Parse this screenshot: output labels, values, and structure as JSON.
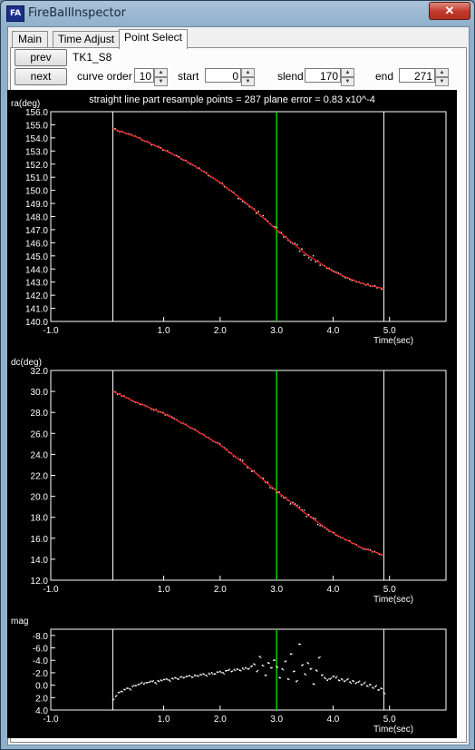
{
  "window": {
    "title": "FireBallInspector",
    "icon_text": "FA",
    "close_label": "✕"
  },
  "tabs": [
    {
      "label": "Main",
      "active": false
    },
    {
      "label": "Time Adjust",
      "active": false
    },
    {
      "label": "Point Select",
      "active": true
    }
  ],
  "controls": {
    "prev_label": "prev",
    "next_label": "next",
    "station_name": "TK1_S8",
    "curve_order_label": "curve order",
    "curve_order_value": "10",
    "start_label": "start",
    "start_value": "0",
    "slend_label": "slend",
    "slend_value": "170",
    "end_label": "end",
    "end_value": "271"
  },
  "status_line": "straight line part resample points = 287  plane error = 0.83 x10^-4",
  "colors": {
    "fit_line": "#ff2020",
    "points": "#ffffff",
    "marker": "#00d000",
    "axes": "#ffffff"
  },
  "chart_data": [
    {
      "type": "scatter",
      "title": "",
      "ylabel": "ra(deg)",
      "xlabel": "Time(sec)",
      "xlim": [
        -1.0,
        6.0
      ],
      "ylim": [
        140.0,
        156.0
      ],
      "x_ticks": [
        "-1.0",
        "1.0",
        "2.0",
        "3.0",
        "4.0",
        "5.0"
      ],
      "x_tick_values": [
        -1,
        1,
        2,
        3,
        4,
        5
      ],
      "y_ticks": [
        "155.0",
        "154.0",
        "153.0",
        "152.0",
        "151.0",
        "150.0",
        "149.0",
        "148.0",
        "147.0",
        "146.0",
        "145.0",
        "144.0",
        "143.0",
        "142.0",
        "141.0",
        "140.0"
      ],
      "y_tick_values": [
        155,
        154,
        153,
        152,
        151,
        150,
        149,
        148,
        147,
        146,
        145,
        144,
        143,
        142,
        141,
        140
      ],
      "y_top_label": "156.0",
      "start_line_x": 0.1,
      "end_line_x": 4.9,
      "marker_x": 3.0,
      "fit_curve": {
        "x": [
          0.1,
          0.5,
          1.0,
          1.5,
          2.0,
          2.5,
          3.0,
          3.5,
          4.0,
          4.5,
          4.9
        ],
        "y": [
          154.7,
          154.1,
          153.1,
          152.0,
          150.6,
          148.9,
          147.0,
          145.2,
          143.8,
          142.9,
          142.5
        ]
      },
      "scatter_noise": 0.15
    },
    {
      "type": "scatter",
      "title": "",
      "ylabel": "dc(deg)",
      "xlabel": "Time(sec)",
      "xlim": [
        -1.0,
        6.0
      ],
      "ylim": [
        12.0,
        32.0
      ],
      "x_ticks": [
        "-1.0",
        "1.0",
        "2.0",
        "3.0",
        "4.0",
        "5.0"
      ],
      "x_tick_values": [
        -1,
        1,
        2,
        3,
        4,
        5
      ],
      "y_ticks": [
        "32.0",
        "30.0",
        "28.0",
        "26.0",
        "24.0",
        "22.0",
        "20.0",
        "18.0",
        "16.0",
        "14.0",
        "12.0"
      ],
      "y_tick_values": [
        32,
        30,
        28,
        26,
        24,
        22,
        20,
        18,
        16,
        14,
        12
      ],
      "start_line_x": 0.1,
      "end_line_x": 4.9,
      "marker_x": 3.0,
      "fit_curve": {
        "x": [
          0.1,
          0.5,
          1.0,
          1.5,
          2.0,
          2.5,
          3.0,
          3.5,
          4.0,
          4.5,
          4.9
        ],
        "y": [
          30.0,
          29.0,
          27.9,
          26.5,
          24.9,
          22.8,
          20.5,
          18.4,
          16.5,
          15.1,
          14.4
        ]
      },
      "scatter_noise": 0.15
    },
    {
      "type": "scatter",
      "title": "",
      "ylabel": "mag",
      "xlabel": "Time(sec)",
      "xlim": [
        -1.0,
        6.0
      ],
      "ylim": [
        4.0,
        -9.0
      ],
      "x_ticks": [
        "-1.0",
        "1.0",
        "2.0",
        "3.0",
        "4.0",
        "5.0"
      ],
      "x_tick_values": [
        -1,
        1,
        2,
        3,
        4,
        5
      ],
      "y_ticks": [
        "-8.0",
        "-6.0",
        "-4.0",
        "-2.0",
        "0.0",
        "2.0",
        "4.0"
      ],
      "y_tick_values": [
        -8,
        -6,
        -4,
        -2,
        0,
        2,
        4
      ],
      "start_line_x": 0.1,
      "end_line_x": 4.9,
      "marker_x": 3.0,
      "points": [
        [
          0.1,
          2.4
        ],
        [
          0.15,
          1.8
        ],
        [
          0.2,
          1.2
        ],
        [
          0.25,
          1.0
        ],
        [
          0.3,
          0.7
        ],
        [
          0.35,
          0.5
        ],
        [
          0.4,
          0.6
        ],
        [
          0.45,
          0.2
        ],
        [
          0.5,
          0.1
        ],
        [
          0.55,
          -0.1
        ],
        [
          0.6,
          -0.3
        ],
        [
          0.65,
          -0.2
        ],
        [
          0.7,
          -0.4
        ],
        [
          0.75,
          -0.5
        ],
        [
          0.8,
          -0.6
        ],
        [
          0.85,
          -0.4
        ],
        [
          0.9,
          -0.7
        ],
        [
          0.95,
          -0.8
        ],
        [
          1.0,
          -0.9
        ],
        [
          1.05,
          -1.0
        ],
        [
          1.1,
          -0.8
        ],
        [
          1.15,
          -1.1
        ],
        [
          1.2,
          -1.2
        ],
        [
          1.25,
          -1.0
        ],
        [
          1.3,
          -1.3
        ],
        [
          1.35,
          -1.2
        ],
        [
          1.4,
          -1.4
        ],
        [
          1.45,
          -1.5
        ],
        [
          1.5,
          -1.3
        ],
        [
          1.55,
          -1.6
        ],
        [
          1.6,
          -1.5
        ],
        [
          1.65,
          -1.7
        ],
        [
          1.7,
          -1.8
        ],
        [
          1.75,
          -1.6
        ],
        [
          1.8,
          -1.9
        ],
        [
          1.85,
          -2.0
        ],
        [
          1.9,
          -1.8
        ],
        [
          1.95,
          -2.1
        ],
        [
          2.0,
          -2.2
        ],
        [
          2.05,
          -2.0
        ],
        [
          2.1,
          -2.3
        ],
        [
          2.15,
          -2.4
        ],
        [
          2.2,
          -2.2
        ],
        [
          2.25,
          -2.5
        ],
        [
          2.3,
          -2.6
        ],
        [
          2.35,
          -2.4
        ],
        [
          2.4,
          -2.7
        ],
        [
          2.45,
          -2.8
        ],
        [
          2.5,
          -2.6
        ],
        [
          2.55,
          -3.0
        ],
        [
          2.6,
          -3.4
        ],
        [
          2.65,
          -2.2
        ],
        [
          2.7,
          -4.6
        ],
        [
          2.75,
          -3.2
        ],
        [
          2.8,
          -1.6
        ],
        [
          2.85,
          -3.6
        ],
        [
          2.9,
          -2.8
        ],
        [
          2.95,
          -4.0
        ],
        [
          3.0,
          -3.0
        ],
        [
          3.05,
          -1.2
        ],
        [
          3.1,
          -2.6
        ],
        [
          3.15,
          -3.8
        ],
        [
          3.2,
          -1.0
        ],
        [
          3.25,
          -5.0
        ],
        [
          3.3,
          -2.2
        ],
        [
          3.35,
          -0.6
        ],
        [
          3.4,
          -6.6
        ],
        [
          3.45,
          -3.2
        ],
        [
          3.5,
          -1.8
        ],
        [
          3.55,
          -3.6
        ],
        [
          3.6,
          -2.6
        ],
        [
          3.65,
          -0.2
        ],
        [
          3.7,
          -2.4
        ],
        [
          3.75,
          -4.4
        ],
        [
          3.8,
          -1.6
        ],
        [
          3.85,
          -1.2
        ],
        [
          3.9,
          -0.8
        ],
        [
          3.95,
          -1.0
        ],
        [
          4.0,
          -1.4
        ],
        [
          4.05,
          -1.2
        ],
        [
          4.1,
          -0.8
        ],
        [
          4.15,
          -1.0
        ],
        [
          4.2,
          -0.6
        ],
        [
          4.25,
          -0.9
        ],
        [
          4.3,
          -0.5
        ],
        [
          4.35,
          -0.7
        ],
        [
          4.4,
          -0.3
        ],
        [
          4.45,
          -0.5
        ],
        [
          4.5,
          -0.1
        ],
        [
          4.55,
          -0.3
        ],
        [
          4.6,
          0.1
        ],
        [
          4.65,
          -0.1
        ],
        [
          4.7,
          0.4
        ],
        [
          4.75,
          0.2
        ],
        [
          4.8,
          0.8
        ],
        [
          4.85,
          0.5
        ],
        [
          4.9,
          1.2
        ]
      ]
    }
  ]
}
